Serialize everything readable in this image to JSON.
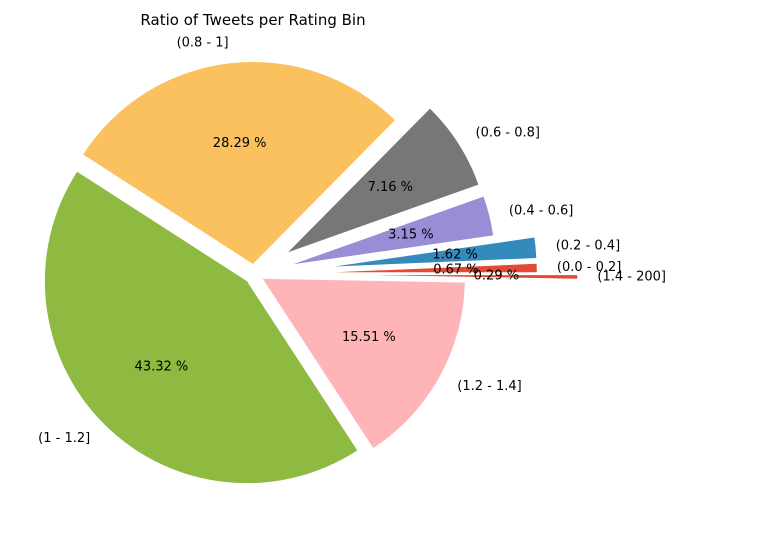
{
  "chart_data": {
    "type": "pie",
    "title": "Ratio of Tweets per Rating Bin",
    "slices": [
      {
        "label": "(0.0 - 0.2]",
        "value": 0.67,
        "pct_label": "0.67 %",
        "color": "#e24a33",
        "explode": 0.4
      },
      {
        "label": "(0.2 - 0.4]",
        "value": 1.62,
        "pct_label": "1.62 %",
        "color": "#348abd",
        "explode": 0.4
      },
      {
        "label": "(0.4 - 0.6]",
        "value": 3.15,
        "pct_label": "3.15 %",
        "color": "#988ed5",
        "explode": 0.2
      },
      {
        "label": "(0.6 - 0.8]",
        "value": 7.16,
        "pct_label": "7.16 %",
        "color": "#777777",
        "explode": 0.2
      },
      {
        "label": "(0.8 - 1]",
        "value": 28.29,
        "pct_label": "28.29 %",
        "color": "#fbc15e",
        "explode": 0.05
      },
      {
        "label": "(1 - 1.2]",
        "value": 43.32,
        "pct_label": "43.32 %",
        "color": "#8eba42",
        "explode": 0.05
      },
      {
        "label": "(1.2 - 1.4]",
        "value": 15.51,
        "pct_label": "15.51 %",
        "color": "#ffb5b8",
        "explode": 0.05
      },
      {
        "label": "(1.4 - 200]",
        "value": 0.29,
        "pct_label": "0.29 %",
        "color": "#e24a33",
        "explode": 0.6
      }
    ]
  }
}
